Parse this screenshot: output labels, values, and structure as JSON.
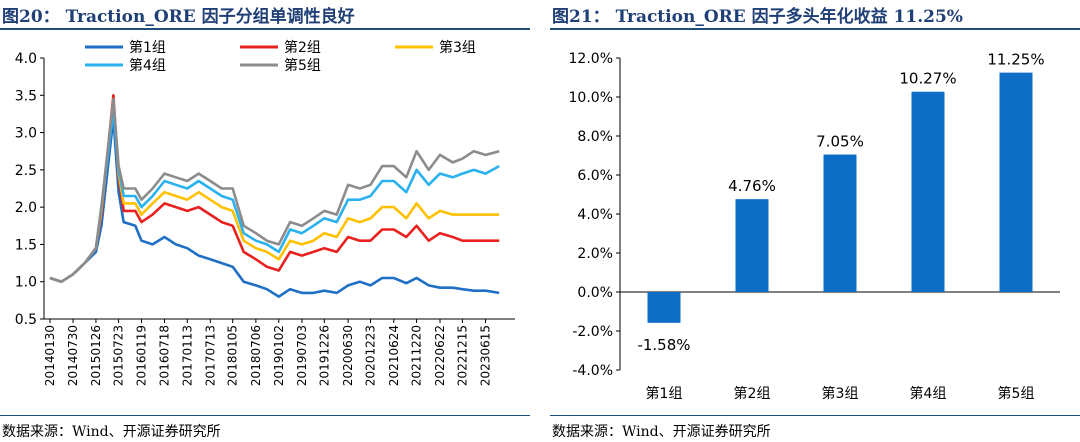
{
  "left": {
    "title": "图20：  Traction_ORE 因子分组单调性良好",
    "source": "数据来源：Wind、开源证券研究所"
  },
  "right": {
    "title": "图21：  Traction_ORE 因子多头年化收益 11.25%",
    "source": "数据来源：Wind、开源证券研究所"
  },
  "chart_data": [
    {
      "type": "line",
      "title": "Traction_ORE 因子分组单调性良好",
      "ylim": [
        0.5,
        4.0
      ],
      "y_ticks": [
        "0.5",
        "1.0",
        "1.5",
        "2.0",
        "2.5",
        "3.0",
        "3.5",
        "4.0"
      ],
      "x_tick_labels": [
        "20140130",
        "20140730",
        "20150126",
        "20150723",
        "20160119",
        "20160718",
        "20170113",
        "20170713",
        "20180105",
        "20180706",
        "20190102",
        "20190703",
        "20191226",
        "20200630",
        "20201223",
        "20210624",
        "20211220",
        "20220622",
        "20221215",
        "20230615"
      ],
      "legend_position": "top",
      "series": [
        {
          "name": "第1组",
          "color": "#1f6fc5",
          "x": [
            "20140130",
            "20140430",
            "20140730",
            "20141030",
            "20150126",
            "20150310",
            "20150612",
            "20150723",
            "20150901",
            "20151201",
            "20160119",
            "20160415",
            "20160718",
            "20161015",
            "20170113",
            "20170413",
            "20170713",
            "20171010",
            "20180105",
            "20180401",
            "20180706",
            "20181001",
            "20190102",
            "20190401",
            "20190703",
            "20191001",
            "20191226",
            "20200401",
            "20200630",
            "20200930",
            "20201223",
            "20210325",
            "20210624",
            "20210930",
            "20211220",
            "20220325",
            "20220622",
            "20220930",
            "20221215",
            "20230315",
            "20230615",
            "20230930"
          ],
          "values": [
            1.05,
            1.0,
            1.1,
            1.25,
            1.4,
            1.75,
            3.2,
            2.2,
            1.8,
            1.75,
            1.55,
            1.5,
            1.6,
            1.5,
            1.45,
            1.35,
            1.3,
            1.25,
            1.2,
            1.0,
            0.95,
            0.9,
            0.8,
            0.9,
            0.85,
            0.85,
            0.88,
            0.85,
            0.95,
            1.0,
            0.95,
            1.05,
            1.05,
            0.98,
            1.05,
            0.95,
            0.92,
            0.92,
            0.9,
            0.88,
            0.88,
            0.85
          ]
        },
        {
          "name": "第2组",
          "color": "#e8211e",
          "x": [
            "20140130",
            "20140430",
            "20140730",
            "20141030",
            "20150126",
            "20150310",
            "20150612",
            "20150723",
            "20150901",
            "20151201",
            "20160119",
            "20160415",
            "20160718",
            "20161015",
            "20170113",
            "20170413",
            "20170713",
            "20171010",
            "20180105",
            "20180401",
            "20180706",
            "20181001",
            "20190102",
            "20190401",
            "20190703",
            "20191001",
            "20191226",
            "20200401",
            "20200630",
            "20200930",
            "20201223",
            "20210325",
            "20210624",
            "20210930",
            "20211220",
            "20220325",
            "20220622",
            "20220930",
            "20221215",
            "20230315",
            "20230615",
            "20230930"
          ],
          "values": [
            1.05,
            1.0,
            1.1,
            1.25,
            1.45,
            1.9,
            3.5,
            2.4,
            1.95,
            1.95,
            1.8,
            1.9,
            2.05,
            2.0,
            1.95,
            2.0,
            1.9,
            1.8,
            1.75,
            1.4,
            1.3,
            1.2,
            1.15,
            1.4,
            1.35,
            1.4,
            1.45,
            1.4,
            1.6,
            1.55,
            1.55,
            1.7,
            1.7,
            1.6,
            1.75,
            1.55,
            1.65,
            1.6,
            1.55,
            1.55,
            1.55,
            1.55
          ]
        },
        {
          "name": "第3组",
          "color": "#ffc000",
          "x": [
            "20140130",
            "20140430",
            "20140730",
            "20141030",
            "20150126",
            "20150310",
            "20150612",
            "20150723",
            "20150901",
            "20151201",
            "20160119",
            "20160415",
            "20160718",
            "20161015",
            "20170113",
            "20170413",
            "20170713",
            "20171010",
            "20180105",
            "20180401",
            "20180706",
            "20181001",
            "20190102",
            "20190401",
            "20190703",
            "20191001",
            "20191226",
            "20200401",
            "20200630",
            "20200930",
            "20201223",
            "20210325",
            "20210624",
            "20210930",
            "20211220",
            "20220325",
            "20220622",
            "20220930",
            "20221215",
            "20230315",
            "20230615",
            "20230930"
          ],
          "values": [
            1.05,
            1.0,
            1.1,
            1.25,
            1.45,
            1.95,
            3.4,
            2.45,
            2.05,
            2.05,
            1.9,
            2.05,
            2.2,
            2.15,
            2.1,
            2.2,
            2.1,
            2.0,
            1.95,
            1.55,
            1.45,
            1.4,
            1.3,
            1.55,
            1.5,
            1.55,
            1.65,
            1.6,
            1.85,
            1.8,
            1.85,
            2.0,
            2.0,
            1.85,
            2.05,
            1.85,
            1.95,
            1.9,
            1.9,
            1.9,
            1.9,
            1.9
          ]
        },
        {
          "name": "第4组",
          "color": "#29b1f0",
          "x": [
            "20140130",
            "20140430",
            "20140730",
            "20141030",
            "20150126",
            "20150310",
            "20150612",
            "20150723",
            "20150901",
            "20151201",
            "20160119",
            "20160415",
            "20160718",
            "20161015",
            "20170113",
            "20170413",
            "20170713",
            "20171010",
            "20180105",
            "20180401",
            "20180706",
            "20181001",
            "20190102",
            "20190401",
            "20190703",
            "20191001",
            "20191226",
            "20200401",
            "20200630",
            "20200930",
            "20201223",
            "20210325",
            "20210624",
            "20210930",
            "20211220",
            "20220325",
            "20220622",
            "20220930",
            "20221215",
            "20230315",
            "20230615",
            "20230930"
          ],
          "values": [
            1.05,
            1.0,
            1.1,
            1.25,
            1.45,
            2.0,
            3.3,
            2.5,
            2.15,
            2.15,
            2.0,
            2.15,
            2.35,
            2.3,
            2.25,
            2.35,
            2.25,
            2.15,
            2.1,
            1.65,
            1.55,
            1.5,
            1.4,
            1.7,
            1.65,
            1.75,
            1.85,
            1.8,
            2.1,
            2.1,
            2.15,
            2.35,
            2.35,
            2.2,
            2.5,
            2.3,
            2.45,
            2.4,
            2.45,
            2.5,
            2.45,
            2.55
          ]
        },
        {
          "name": "第5组",
          "color": "#8c8c8c",
          "x": [
            "20140130",
            "20140430",
            "20140730",
            "20141030",
            "20150126",
            "20150310",
            "20150612",
            "20150723",
            "20150901",
            "20151201",
            "20160119",
            "20160415",
            "20160718",
            "20161015",
            "20170113",
            "20170413",
            "20170713",
            "20171010",
            "20180105",
            "20180401",
            "20180706",
            "20181001",
            "20190102",
            "20190401",
            "20190703",
            "20191001",
            "20191226",
            "20200401",
            "20200630",
            "20200930",
            "20201223",
            "20210325",
            "20210624",
            "20210930",
            "20211220",
            "20220325",
            "20220622",
            "20220930",
            "20221215",
            "20230315",
            "20230615",
            "20230930"
          ],
          "values": [
            1.05,
            1.0,
            1.1,
            1.25,
            1.45,
            2.0,
            3.45,
            2.55,
            2.25,
            2.25,
            2.1,
            2.25,
            2.45,
            2.4,
            2.35,
            2.45,
            2.35,
            2.25,
            2.25,
            1.75,
            1.65,
            1.55,
            1.5,
            1.8,
            1.75,
            1.85,
            1.95,
            1.9,
            2.3,
            2.25,
            2.3,
            2.55,
            2.55,
            2.4,
            2.75,
            2.5,
            2.7,
            2.6,
            2.65,
            2.75,
            2.7,
            2.75
          ]
        }
      ]
    },
    {
      "type": "bar",
      "title": "Traction_ORE 因子多头年化收益 11.25%",
      "categories": [
        "第1组",
        "第2组",
        "第3组",
        "第4组",
        "第5组"
      ],
      "values": [
        -1.58,
        4.76,
        7.05,
        10.27,
        11.25
      ],
      "data_labels": [
        "-1.58%",
        "4.76%",
        "7.05%",
        "10.27%",
        "11.25%"
      ],
      "ylim": [
        -4.0,
        12.0
      ],
      "y_ticks": [
        "-4.0%",
        "-2.0%",
        "0.0%",
        "2.0%",
        "4.0%",
        "6.0%",
        "8.0%",
        "10.0%",
        "12.0%"
      ],
      "bar_color": "#0d6cc3",
      "grid": false
    }
  ]
}
